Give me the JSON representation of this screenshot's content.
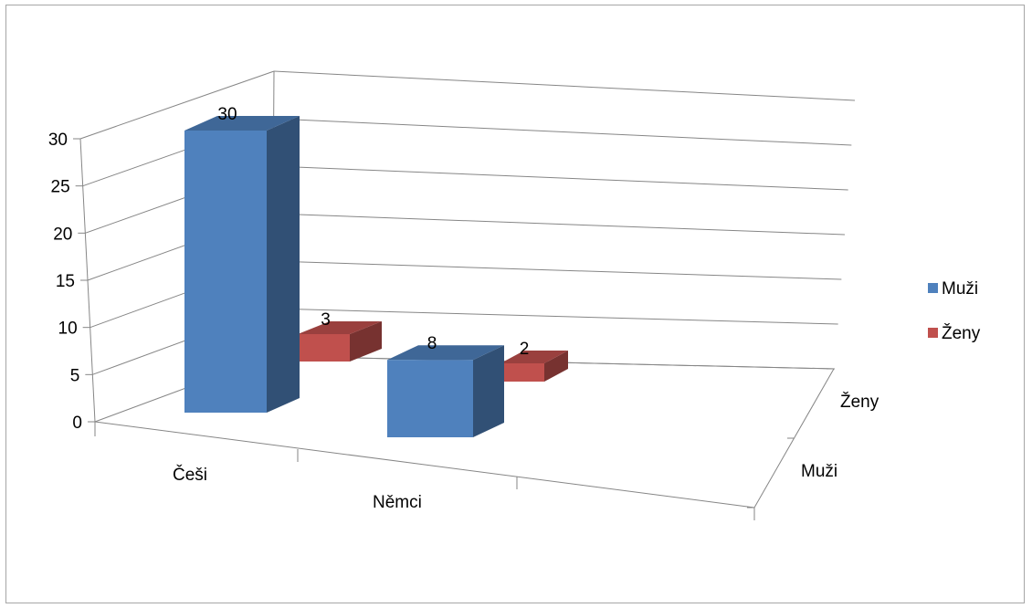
{
  "chart_data": {
    "type": "bar",
    "subtype": "3d-clustered-column",
    "title": "",
    "xlabel": "",
    "ylabel": "",
    "categories": [
      "Češi",
      "Němci"
    ],
    "depth_labels": [
      "Muži",
      "Ženy"
    ],
    "series": [
      {
        "name": "Muži",
        "values": [
          30,
          8
        ],
        "color": "#4f81bd"
      },
      {
        "name": "Ženy",
        "values": [
          3,
          2
        ],
        "color": "#c0504d"
      }
    ],
    "yticks": [
      "0",
      "5",
      "10",
      "15",
      "20",
      "25",
      "30"
    ],
    "ylim": [
      0,
      30
    ],
    "grid": true,
    "legend": "right"
  }
}
